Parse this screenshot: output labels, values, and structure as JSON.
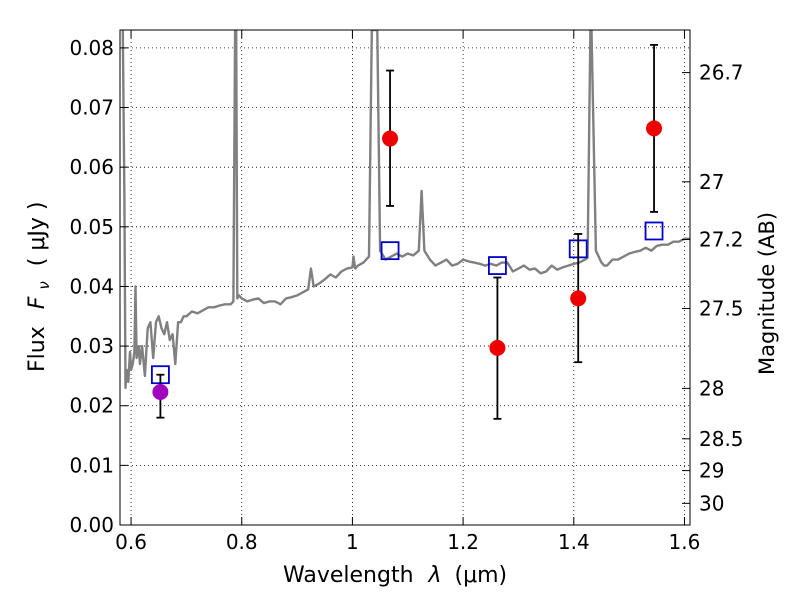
{
  "chart_data": {
    "type": "scatter",
    "xlabel": "Wavelength",
    "xlabel_symbol": "λ",
    "xlabel_unit": "(μm)",
    "ylabel": "Flux",
    "ylabel_symbol": "F",
    "ylabel_sub": "ν",
    "ylabel_unit": "( μJy )",
    "y2label": "Magnitude (AB)",
    "xlim": [
      0.58,
      1.61
    ],
    "ylim": [
      0.0,
      0.083
    ],
    "grid": true,
    "x_ticks": [
      0.6,
      0.8,
      1.0,
      1.2,
      1.4,
      1.6
    ],
    "x_tick_labels": [
      "0.6",
      "0.8",
      "1",
      "1.2",
      "1.4",
      "1.6"
    ],
    "y_ticks": [
      0.0,
      0.01,
      0.02,
      0.03,
      0.04,
      0.05,
      0.06,
      0.07,
      0.08
    ],
    "y_tick_labels": [
      "0.00",
      "0.01",
      "0.02",
      "0.03",
      "0.04",
      "0.05",
      "0.06",
      "0.07",
      "0.08"
    ],
    "mag_ticks": [
      26.7,
      27,
      27.2,
      27.5,
      28,
      28.5,
      29,
      30
    ],
    "mag_tick_labels": [
      "26.7",
      "27",
      "27.2",
      "27.5",
      "28",
      "28.5",
      "29",
      "30"
    ],
    "series": [
      {
        "name": "model-sed",
        "kind": "line",
        "color": "#808080",
        "x": [
          0.585,
          0.588,
          0.59,
          0.592,
          0.595,
          0.598,
          0.6,
          0.603,
          0.606,
          0.608,
          0.61,
          0.612,
          0.614,
          0.616,
          0.62,
          0.625,
          0.63,
          0.635,
          0.64,
          0.645,
          0.65,
          0.655,
          0.66,
          0.665,
          0.67,
          0.675,
          0.68,
          0.685,
          0.69,
          0.695,
          0.7,
          0.71,
          0.72,
          0.73,
          0.74,
          0.75,
          0.76,
          0.77,
          0.78,
          0.785,
          0.788,
          0.79,
          0.792,
          0.795,
          0.8,
          0.81,
          0.82,
          0.83,
          0.84,
          0.85,
          0.86,
          0.87,
          0.88,
          0.89,
          0.9,
          0.91,
          0.92,
          0.925,
          0.93,
          0.94,
          0.95,
          0.96,
          0.97,
          0.98,
          0.99,
          1.0,
          1.002,
          1.005,
          1.01,
          1.02,
          1.03,
          1.035,
          1.038,
          1.045,
          1.05,
          1.06,
          1.07,
          1.08,
          1.09,
          1.1,
          1.11,
          1.12,
          1.125,
          1.13,
          1.14,
          1.15,
          1.16,
          1.17,
          1.18,
          1.19,
          1.2,
          1.21,
          1.22,
          1.23,
          1.24,
          1.25,
          1.26,
          1.27,
          1.28,
          1.29,
          1.3,
          1.31,
          1.32,
          1.33,
          1.34,
          1.35,
          1.36,
          1.37,
          1.38,
          1.39,
          1.4,
          1.41,
          1.42,
          1.425,
          1.43,
          1.432,
          1.44,
          1.445,
          1.45,
          1.455,
          1.46,
          1.47,
          1.48,
          1.49,
          1.5,
          1.51,
          1.52,
          1.53,
          1.54,
          1.55,
          1.56,
          1.57,
          1.58,
          1.59,
          1.6,
          1.61
        ],
        "y": [
          0.083,
          0.055,
          0.023,
          0.026,
          0.024,
          0.029,
          0.026,
          0.027,
          0.029,
          0.04,
          0.028,
          0.029,
          0.03,
          0.027,
          0.03,
          0.025,
          0.033,
          0.034,
          0.028,
          0.034,
          0.035,
          0.033,
          0.032,
          0.034,
          0.031,
          0.032,
          0.027,
          0.034,
          0.034,
          0.035,
          0.035,
          0.0358,
          0.0355,
          0.036,
          0.0365,
          0.0365,
          0.0368,
          0.037,
          0.037,
          0.0375,
          0.083,
          0.083,
          0.038,
          0.0385,
          0.038,
          0.0375,
          0.0378,
          0.038,
          0.0372,
          0.0375,
          0.0375,
          0.037,
          0.038,
          0.0382,
          0.0385,
          0.039,
          0.0395,
          0.043,
          0.04,
          0.0405,
          0.0412,
          0.042,
          0.0415,
          0.0425,
          0.043,
          0.0432,
          0.045,
          0.043,
          0.0435,
          0.044,
          0.045,
          0.083,
          0.083,
          0.083,
          0.046,
          0.0445,
          0.045,
          0.0455,
          0.045,
          0.0455,
          0.0452,
          0.046,
          0.056,
          0.046,
          0.0445,
          0.0435,
          0.044,
          0.0445,
          0.0435,
          0.0438,
          0.0445,
          0.0442,
          0.044,
          0.0438,
          0.0435,
          0.0438,
          0.0435,
          0.044,
          0.044,
          0.0425,
          0.043,
          0.0435,
          0.0428,
          0.043,
          0.0422,
          0.0425,
          0.0435,
          0.0428,
          0.0432,
          0.0435,
          0.0438,
          0.044,
          0.0445,
          0.0448,
          0.083,
          0.083,
          0.046,
          0.045,
          0.044,
          0.0435,
          0.0435,
          0.0445,
          0.0445,
          0.045,
          0.0455,
          0.0458,
          0.046,
          0.0465,
          0.046,
          0.0468,
          0.047,
          0.047,
          0.0475,
          0.0475,
          0.048,
          0.048
        ]
      },
      {
        "name": "model-photometry",
        "kind": "open-square",
        "color": "#0000cc",
        "x": [
          0.653,
          1.068,
          1.262,
          1.408,
          1.545
        ],
        "y": [
          0.0252,
          0.046,
          0.0435,
          0.0463,
          0.0493
        ]
      },
      {
        "name": "observed-photometry",
        "kind": "filled-circle",
        "color": "#ee0000",
        "x": [
          1.068,
          1.262,
          1.408,
          1.545
        ],
        "y": [
          0.0648,
          0.0297,
          0.038,
          0.0665
        ],
        "yerr_low": [
          0.0535,
          0.0178,
          0.0273,
          0.0525
        ],
        "yerr_high": [
          0.0762,
          0.0415,
          0.0488,
          0.0805
        ]
      },
      {
        "name": "observed-photometry-optical",
        "kind": "filled-circle",
        "color": "#a000c0",
        "x": [
          0.653
        ],
        "y": [
          0.0223
        ],
        "yerr_low": [
          0.018
        ],
        "yerr_high": [
          0.0252
        ]
      }
    ]
  }
}
